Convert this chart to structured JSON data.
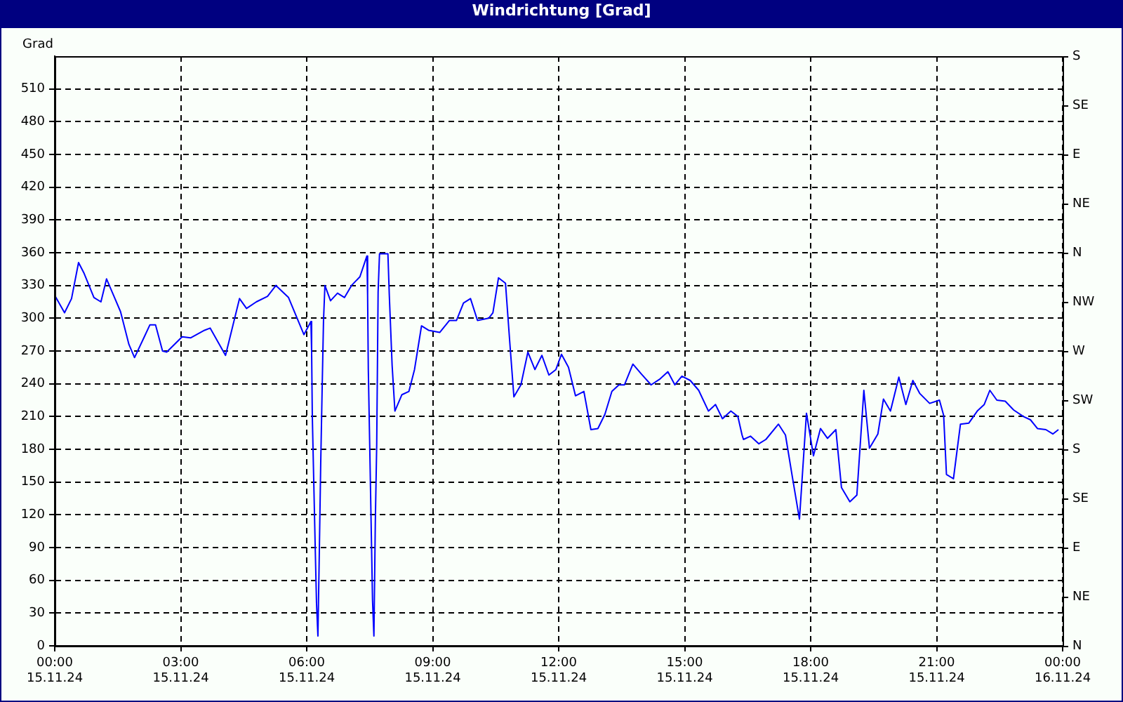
{
  "chart_data": {
    "type": "line",
    "title": "Windrichtung [Grad]",
    "ylabel": "Grad",
    "x": [
      "--11-15T00:00",
      "--11-15T00:14",
      "--11-15T00:24",
      "--11-15T00:34",
      "--11-15T00:42",
      "--11-15T00:56",
      "--11-15T01:06",
      "--11-15T01:14",
      "--11-15T01:24",
      "--11-15T01:34",
      "--11-15T01:46",
      "--11-15T01:54",
      "--11-15T02:08",
      "--11-15T02:16",
      "--11-15T02:24",
      "--11-15T02:34",
      "--11-15T02:40",
      "--11-15T03:02",
      "--11-15T03:14",
      "--11-15T03:34",
      "--11-15T03:42",
      "--11-15T04:04",
      "--11-15T04:24",
      "--11-15T04:34",
      "--11-15T04:48",
      "--11-15T05:04",
      "--11-15T05:16",
      "--11-15T05:34",
      "--11-15T05:56",
      "--11-15T06:06",
      "--11-15T06:07",
      "--11-15T06:08",
      "--11-15T06:10",
      "--11-15T06:12",
      "--11-15T06:14",
      "--11-15T06:16",
      "--11-15T06:18",
      "--11-15T06:20",
      "--11-15T06:22",
      "--11-15T06:24",
      "--11-15T06:26",
      "--11-15T06:34",
      "--11-15T06:44",
      "--11-15T06:54",
      "--11-15T07:04",
      "--11-15T07:16",
      "--11-15T07:26",
      "--11-15T07:27",
      "--11-15T07:28",
      "--11-15T07:30",
      "--11-15T07:32",
      "--11-15T07:34",
      "--11-15T07:36",
      "--11-15T07:38",
      "--11-15T07:40",
      "--11-15T07:42",
      "--11-15T07:44",
      "--11-15T07:56",
      "--11-15T07:58",
      "--11-15T08:02",
      "--11-15T08:06",
      "--11-15T08:16",
      "--11-15T08:26",
      "--11-15T08:34",
      "--11-15T08:44",
      "--11-15T08:54",
      "--11-15T09:10",
      "--11-15T09:24",
      "--11-15T09:34",
      "--11-15T09:44",
      "--11-15T09:54",
      "--11-15T10:04",
      "--11-15T10:20",
      "--11-15T10:26",
      "--11-15T10:34",
      "--11-15T10:44",
      "--11-15T10:50",
      "--11-15T10:56",
      "--11-15T11:06",
      "--11-15T11:16",
      "--11-15T11:26",
      "--11-15T11:36",
      "--11-15T11:46",
      "--11-15T11:56",
      "--11-15T12:04",
      "--11-15T12:14",
      "--11-15T12:24",
      "--11-15T12:36",
      "--11-15T12:46",
      "--11-15T12:56",
      "--11-15T13:06",
      "--11-15T13:16",
      "--11-15T13:26",
      "--11-15T13:34",
      "--11-15T13:46",
      "--11-15T13:58",
      "--11-15T14:12",
      "--11-15T14:24",
      "--11-15T14:36",
      "--11-15T14:46",
      "--11-15T14:56",
      "--11-15T15:08",
      "--11-15T15:20",
      "--11-15T15:34",
      "--11-15T15:44",
      "--11-15T15:54",
      "--11-15T16:06",
      "--11-15T16:16",
      "--11-15T16:22",
      "--11-15T16:24",
      "--11-15T16:34",
      "--11-15T16:46",
      "--11-15T16:56",
      "--11-15T17:14",
      "--11-15T17:24",
      "--11-15T17:34",
      "--11-15T17:44",
      "--11-15T17:54",
      "--11-15T18:04",
      "--11-15T18:14",
      "--11-15T18:24",
      "--11-15T18:36",
      "--11-15T18:44",
      "--11-15T18:56",
      "--11-15T19:06",
      "--11-15T19:16",
      "--11-15T19:24",
      "--11-15T19:36",
      "--11-15T19:44",
      "--11-15T19:54",
      "--11-15T20:06",
      "--11-15T20:16",
      "--11-15T20:26",
      "--11-15T20:36",
      "--11-15T20:50",
      "--11-15T21:04",
      "--11-15T21:10",
      "--11-15T21:14",
      "--11-15T21:24",
      "--11-15T21:34",
      "--11-15T21:46",
      "--11-15T21:58",
      "--11-15T22:08",
      "--11-15T22:16",
      "--11-15T22:26",
      "--11-15T22:38",
      "--11-15T22:50",
      "--11-15T23:04",
      "--11-15T23:14",
      "--11-15T23:24",
      "--11-15T23:36",
      "--11-15T23:46",
      "--11-15T23:54"
    ],
    "series": [
      {
        "color": "#0000ff",
        "values": [
          321,
          305,
          318,
          351,
          341,
          319,
          315,
          336,
          321,
          306,
          276,
          264,
          283,
          294,
          294,
          270,
          269,
          283,
          282,
          289,
          291,
          266,
          318,
          309,
          315,
          320,
          330,
          319,
          285,
          297,
          270,
          210,
          152,
          94,
          39,
          9,
          86,
          167,
          234,
          298,
          330,
          316,
          323,
          319,
          330,
          338,
          357,
          321,
          253,
          184,
          113,
          42,
          9,
          113,
          184,
          324,
          359,
          359,
          321,
          257,
          215,
          230,
          233,
          253,
          293,
          289,
          287,
          298,
          298,
          314,
          318,
          298,
          300,
          305,
          337,
          332,
          279,
          228,
          239,
          269,
          253,
          266,
          248,
          253,
          267,
          255,
          229,
          233,
          198,
          199,
          212,
          233,
          239,
          239,
          258,
          249,
          239,
          244,
          251,
          239,
          247,
          243,
          234,
          215,
          221,
          208,
          215,
          210,
          193,
          189,
          192,
          185,
          189,
          203,
          193,
          154,
          116,
          213,
          174,
          199,
          190,
          198,
          145,
          132,
          138,
          234,
          181,
          194,
          226,
          215,
          246,
          221,
          243,
          231,
          222,
          225,
          211,
          157,
          153,
          203,
          204,
          215,
          221,
          234,
          225,
          224,
          216,
          210,
          207,
          199,
          198,
          194,
          198
        ]
      }
    ],
    "xlim": [
      "--11-15T00:00",
      "--11-16T00:00"
    ],
    "xticks": [
      {
        "value": "--11-15T00:00",
        "label": "00:00\n15.11.24"
      },
      {
        "value": "--11-15T03:00",
        "label": "03:00\n15.11.24"
      },
      {
        "value": "--11-15T06:00",
        "label": "06:00\n15.11.24"
      },
      {
        "value": "--11-15T09:00",
        "label": "09:00\n15.11.24"
      },
      {
        "value": "--11-15T12:00",
        "label": "12:00\n15.11.24"
      },
      {
        "value": "--11-15T15:00",
        "label": "15:00\n15.11.24"
      },
      {
        "value": "--11-15T18:00",
        "label": "18:00\n15.11.24"
      },
      {
        "value": "--11-15T21:00",
        "label": "21:00\n15.11.24"
      },
      {
        "value": "--11-16T00:00",
        "label": "00:00\n16.11.24"
      }
    ],
    "ylim": [
      0,
      540
    ],
    "yticks": [
      0,
      30,
      60,
      90,
      120,
      150,
      180,
      210,
      240,
      270,
      300,
      330,
      360,
      390,
      420,
      450,
      480,
      510
    ],
    "annotations": [
      "N",
      "NE",
      "E",
      "SE",
      "S",
      "SW",
      "W",
      "NW",
      "N",
      "NE",
      "E",
      "SE",
      "S"
    ],
    "grid": true,
    "legend": false,
    "marker": "none",
    "line_style": "solid"
  }
}
